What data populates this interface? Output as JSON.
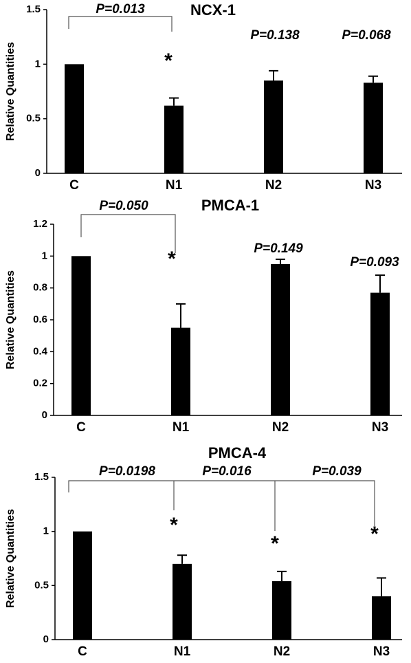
{
  "chart_data": [
    {
      "type": "bar",
      "title": "NCX-1",
      "y_label": "Relative Quantities",
      "categories": [
        "C",
        "N1",
        "N2",
        "N3"
      ],
      "values": [
        1,
        0.62,
        0.85,
        0.83
      ],
      "errors": [
        0,
        0.07,
        0.09,
        0.06
      ],
      "color": "#000000",
      "ylim": [
        0,
        1.5
      ],
      "yticks": [
        0,
        0.5,
        1,
        1.5
      ],
      "annotations": [
        "P=0.013",
        "*",
        "P=0.138",
        "P=0.068"
      ]
    },
    {
      "type": "bar",
      "title": "PMCA-1",
      "y_label": "Relative Quantities",
      "categories": [
        "C",
        "N1",
        "N2",
        "N3"
      ],
      "values": [
        1,
        0.55,
        0.95,
        0.77
      ],
      "errors": [
        0,
        0.15,
        0.03,
        0.11
      ],
      "color": "#000000",
      "ylim": [
        0,
        1.2
      ],
      "yticks": [
        0,
        0.2,
        0.4,
        0.6,
        0.8,
        1,
        1.2
      ],
      "annotations": [
        "P=0.050",
        "*",
        "P=0.149",
        "P=0.093"
      ]
    },
    {
      "type": "bar",
      "title": "PMCA-4",
      "y_label": "Relative Quantities",
      "categories": [
        "C",
        "N1",
        "N2",
        "N3"
      ],
      "values": [
        1,
        0.7,
        0.54,
        0.4
      ],
      "errors": [
        0,
        0.08,
        0.09,
        0.17
      ],
      "color": "#000000",
      "ylim": [
        0,
        1.5
      ],
      "yticks": [
        0,
        0.5,
        1,
        1.5
      ],
      "annotations": [
        "P=0.0198",
        "P=0.016",
        "P=0.039",
        "*",
        "*",
        "*"
      ]
    }
  ]
}
